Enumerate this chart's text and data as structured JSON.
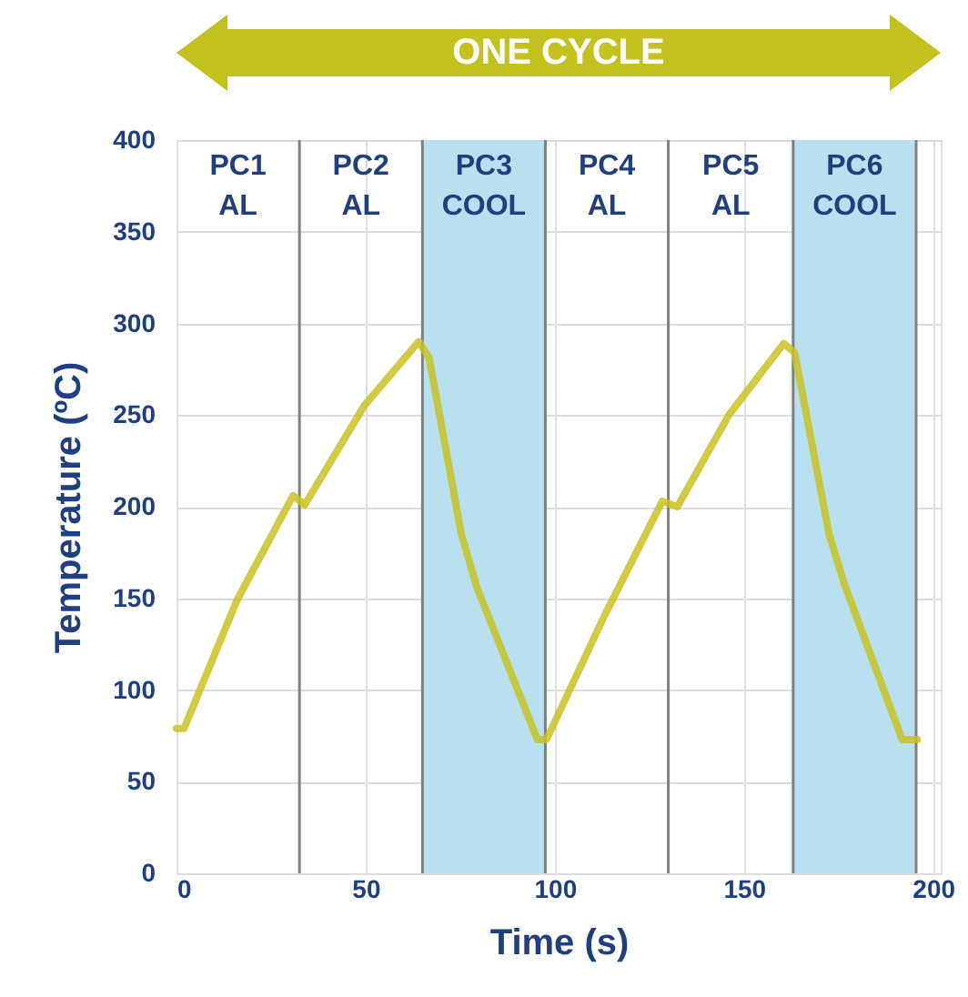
{
  "chart_data": {
    "type": "line",
    "xlabel": "Time (s)",
    "ylabel": "Temperature (ºC)",
    "annotations": [
      "ONE CYCLE",
      "PC1\nAL",
      "PC2\nAL",
      "PC4\nAL",
      "PC5\nAL"
    ],
    "x": [
      0,
      2,
      16,
      30.8,
      33.9,
      49.6,
      64,
      66.8,
      75.3,
      79.4,
      95.4,
      97.8,
      113,
      128.4,
      132.4,
      146,
      160.5,
      163.4,
      172.5,
      176.5,
      191.8,
      195.8
    ],
    "series": [
      {
        "color": "#c8c21e",
        "values": [
          79,
          79,
          149,
          206,
          201,
          255,
          290,
          281,
          185,
          156,
          73,
          73,
          140,
          203,
          200,
          250,
          289,
          284,
          185,
          158,
          73,
          73
        ]
      }
    ],
    "xlim": [
      0,
      202
    ],
    "ylim": [
      0,
      400
    ],
    "xticks": [
      0,
      50,
      100,
      150,
      200
    ],
    "yticks": [
      0,
      50,
      100,
      150,
      200,
      250,
      300,
      350,
      400
    ],
    "grid": true,
    "marker": "none",
    "line_style": "solid",
    "bands": [
      {
        "axis": "x",
        "from": 65,
        "to": 97.5,
        "label": "PC3\nCOOL",
        "color": "#b9e0f0"
      },
      {
        "axis": "x",
        "from": 163,
        "to": 195.5,
        "label": "PC6\nCOOL",
        "color": "#b9e0f0"
      }
    ],
    "ref_lines": [
      {
        "axis": "x",
        "value": 32.5,
        "color": "#808080"
      },
      {
        "axis": "x",
        "value": 65,
        "color": "#808080"
      },
      {
        "axis": "x",
        "value": 97.5,
        "color": "#808080"
      },
      {
        "axis": "x",
        "value": 130,
        "color": "#808080"
      },
      {
        "axis": "x",
        "value": 163,
        "color": "#808080"
      },
      {
        "axis": "x",
        "value": 195.5,
        "color": "#808080"
      }
    ]
  }
}
